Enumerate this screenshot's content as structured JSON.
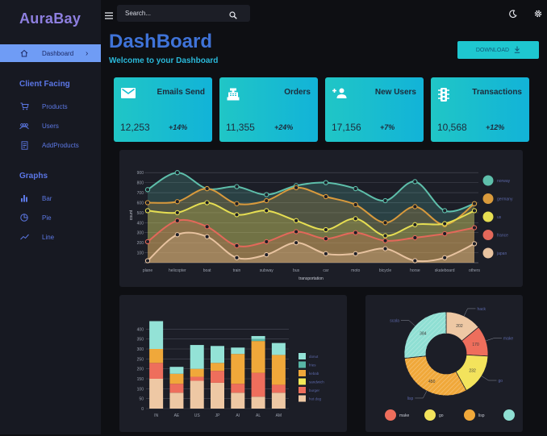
{
  "brand": "AuraBay",
  "sidebar": {
    "dashboard_label": "Dashboard",
    "section_client": "Client Facing",
    "client_items": [
      "Products",
      "Users",
      "AddProducts"
    ],
    "section_graphs": "Graphs",
    "graph_items": [
      "Bar",
      "Pie",
      "Line"
    ]
  },
  "topbar": {
    "search_placeholder": "Search..."
  },
  "header": {
    "title": "DashBoard",
    "subtitle": "Welcome to your Dashboard",
    "download_label": "DOWNLOAD"
  },
  "cards": [
    {
      "title": "Emails Send",
      "value": "12,253",
      "change": "+14%",
      "icon": "email-icon"
    },
    {
      "title": "Orders",
      "value": "11,355",
      "change": "+24%",
      "icon": "cash-register-icon"
    },
    {
      "title": "New Users",
      "value": "17,156",
      "change": "+7%",
      "icon": "add-user-icon"
    },
    {
      "title": "Transactions",
      "value": "10,568",
      "change": "+12%",
      "icon": "traffic-light-icon"
    }
  ],
  "colors": {
    "accent": "#20c6c6",
    "brand": "#8e7fe0",
    "nav": "#5c78e4"
  },
  "chart_data": [
    {
      "type": "line",
      "xlabel": "transportation",
      "ylabel": "count",
      "x": [
        "plane",
        "helicopter",
        "boat",
        "train",
        "subway",
        "bus",
        "car",
        "moto",
        "bicycle",
        "horse",
        "skateboard",
        "others"
      ],
      "yticks": [
        100,
        200,
        300,
        400,
        500,
        600,
        700,
        800,
        900
      ],
      "ylim": [
        0,
        950
      ],
      "legend_position": "right",
      "series": [
        {
          "name": "norway",
          "color": "#5ebfab",
          "values": [
            730,
            900,
            740,
            760,
            680,
            770,
            800,
            740,
            620,
            810,
            520,
            590
          ]
        },
        {
          "name": "germany",
          "color": "#d99a3c",
          "values": [
            600,
            610,
            740,
            590,
            620,
            750,
            660,
            580,
            400,
            560,
            380,
            590
          ]
        },
        {
          "name": "us",
          "color": "#e6de52",
          "values": [
            520,
            500,
            600,
            480,
            520,
            420,
            330,
            440,
            270,
            380,
            390,
            520
          ]
        },
        {
          "name": "france",
          "color": "#e3685a",
          "values": [
            210,
            420,
            360,
            170,
            210,
            310,
            240,
            300,
            220,
            250,
            290,
            350
          ]
        },
        {
          "name": "japan",
          "color": "#e8c3a0",
          "values": [
            20,
            280,
            260,
            50,
            80,
            200,
            90,
            90,
            140,
            20,
            50,
            190
          ]
        }
      ]
    },
    {
      "type": "bar",
      "categories": [
        "IN",
        "AE",
        "US",
        "JP",
        "AI",
        "AL",
        "AM"
      ],
      "yticks": [
        0,
        50,
        100,
        150,
        200,
        250,
        300,
        350,
        400
      ],
      "ylim": [
        0,
        450
      ],
      "legend_position": "right",
      "series": [
        {
          "name": "hot dog",
          "color": "#eec8a4",
          "values": [
            150,
            80,
            140,
            130,
            80,
            60,
            80
          ]
        },
        {
          "name": "burger",
          "color": "#ee6e5c",
          "values": [
            80,
            45,
            20,
            60,
            45,
            120,
            40
          ]
        },
        {
          "name": "sandwich",
          "color": "#f3ea58",
          "values": [
            0,
            0,
            0,
            0,
            0,
            0,
            0
          ]
        },
        {
          "name": "kebab",
          "color": "#f0a83a",
          "values": [
            70,
            50,
            40,
            40,
            150,
            160,
            150
          ]
        },
        {
          "name": "fries",
          "color": "#58b6a6",
          "values": [
            0,
            0,
            0,
            0,
            0,
            10,
            0
          ]
        },
        {
          "name": "donut",
          "color": "#93e2d6",
          "values": [
            140,
            35,
            120,
            85,
            32,
            15,
            60
          ]
        }
      ]
    },
    {
      "type": "pie",
      "slices": [
        {
          "label": "hack",
          "value": 202,
          "color": "#eec8a4"
        },
        {
          "label": "make",
          "value": 170,
          "color": "#ee6e5c"
        },
        {
          "label": "go",
          "value": 232,
          "color": "#f3e35c"
        },
        {
          "label": "lisp",
          "value": 450,
          "color": "#f0a83a"
        },
        {
          "label": "scala",
          "value": 384,
          "color": "#8fdfd3"
        }
      ],
      "legend": [
        "make",
        "go",
        "lisp",
        ""
      ]
    }
  ]
}
